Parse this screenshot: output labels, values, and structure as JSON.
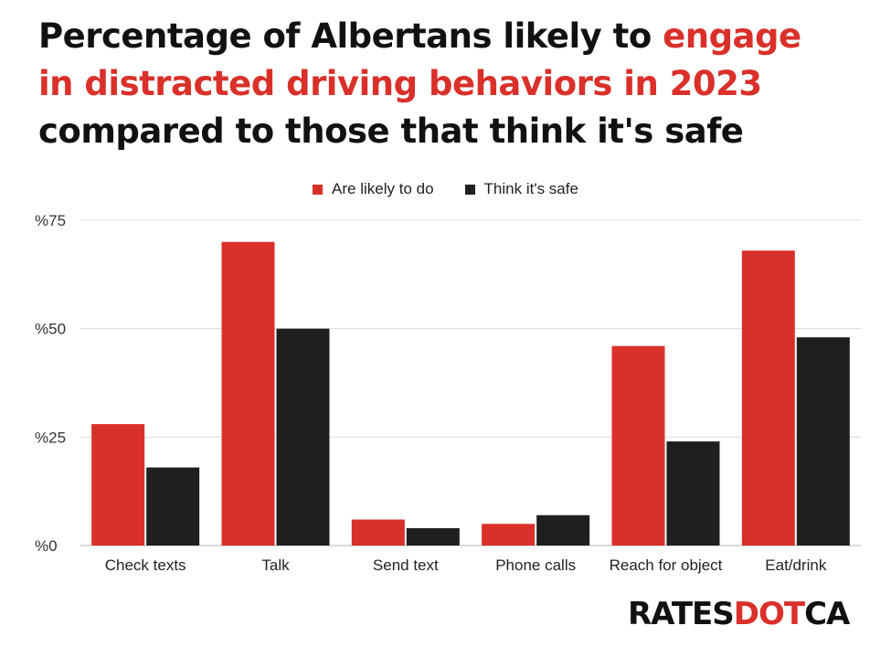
{
  "title": {
    "line1_prefix": "Percentage of Albertans likely to ",
    "line1_highlight": "engage",
    "line2_highlight": "in distracted driving behaviors in 2023",
    "line3": "compared to those that think it's safe"
  },
  "logo": {
    "part1": "RATES",
    "part2": "DOT",
    "part3": "CA"
  },
  "colors": {
    "likely": "#d9302a",
    "safe": "#1f1f1f",
    "highlight": "#d9302a"
  },
  "chart_data": {
    "type": "bar",
    "categories": [
      "Check texts",
      "Talk",
      "Send text",
      "Phone calls",
      "Reach for object",
      "Eat/drink"
    ],
    "series": [
      {
        "name": "Are likely to do",
        "values": [
          28,
          70,
          6,
          5,
          46,
          68
        ]
      },
      {
        "name": "Think it's safe",
        "values": [
          18,
          50,
          4,
          7,
          24,
          48
        ]
      }
    ],
    "yticks": [
      "%0",
      "%25",
      "%50",
      "%75"
    ],
    "ytick_values": [
      0,
      25,
      50,
      75
    ],
    "ylim": [
      0,
      75
    ],
    "xlabel": "",
    "ylabel": "",
    "legend": "top-center",
    "grid": true
  }
}
